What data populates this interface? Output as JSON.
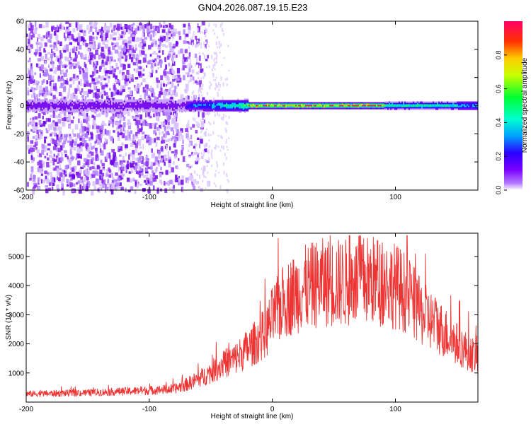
{
  "title": "GN04.2026.087.19.15.E23",
  "chart_data": [
    {
      "type": "heatmap",
      "xlabel": "Height of straight line (km)",
      "ylabel": "Frequency (Hz)",
      "xlim": [
        -200,
        167
      ],
      "ylim": [
        -60,
        60
      ],
      "xticks": [
        {
          "value": -200,
          "label": "-200"
        },
        {
          "value": -100,
          "label": "-100"
        },
        {
          "value": 0,
          "label": "0"
        },
        {
          "value": 100,
          "label": "100"
        }
      ],
      "yticks": [
        {
          "value": 60,
          "label": "60"
        },
        {
          "value": 40,
          "label": "40"
        },
        {
          "value": 20,
          "label": "20"
        },
        {
          "value": 0,
          "label": "0"
        },
        {
          "value": -20,
          "label": "-20"
        },
        {
          "value": -40,
          "label": "-40"
        },
        {
          "value": -60,
          "label": "-60"
        }
      ],
      "ridge_frequency_hz": 0,
      "noise_until_km": -70,
      "colorbar": {
        "label": "Normalized spectral amplitude",
        "range": [
          0.0,
          1.0
        ],
        "ticks": [
          {
            "value": 0.0,
            "label": "0.0"
          },
          {
            "value": 0.2,
            "label": "0.2"
          },
          {
            "value": 0.4,
            "label": "0.4"
          },
          {
            "value": 0.6,
            "label": "0.6"
          },
          {
            "value": 0.8,
            "label": "0.8"
          }
        ]
      }
    },
    {
      "type": "line",
      "xlabel": "Height of straight line (km)",
      "ylabel": "SNR (10 * v/v)",
      "xlim": [
        -200,
        167
      ],
      "ylim": [
        0,
        5800
      ],
      "color": "#ee3333",
      "xticks": [
        {
          "value": -200,
          "label": "-200"
        },
        {
          "value": -100,
          "label": "-100"
        },
        {
          "value": 0,
          "label": "0"
        },
        {
          "value": 100,
          "label": "100"
        }
      ],
      "yticks": [
        {
          "value": 1000,
          "label": "1000"
        },
        {
          "value": 2000,
          "label": "2000"
        },
        {
          "value": 3000,
          "label": "3000"
        },
        {
          "value": 4000,
          "label": "4000"
        },
        {
          "value": 5000,
          "label": "5000"
        }
      ],
      "envelope": {
        "x": [
          -200,
          -150,
          -100,
          -80,
          -70,
          -55,
          -40,
          -30,
          -15,
          -5,
          0,
          10,
          25,
          40,
          60,
          80,
          100,
          110,
          120,
          135,
          150,
          160,
          167
        ],
        "y": [
          280,
          320,
          400,
          450,
          600,
          900,
          1300,
          1500,
          2000,
          2400,
          2900,
          3500,
          3900,
          4100,
          4100,
          4200,
          4000,
          3700,
          3100,
          2600,
          2000,
          1700,
          1500
        ]
      }
    }
  ]
}
